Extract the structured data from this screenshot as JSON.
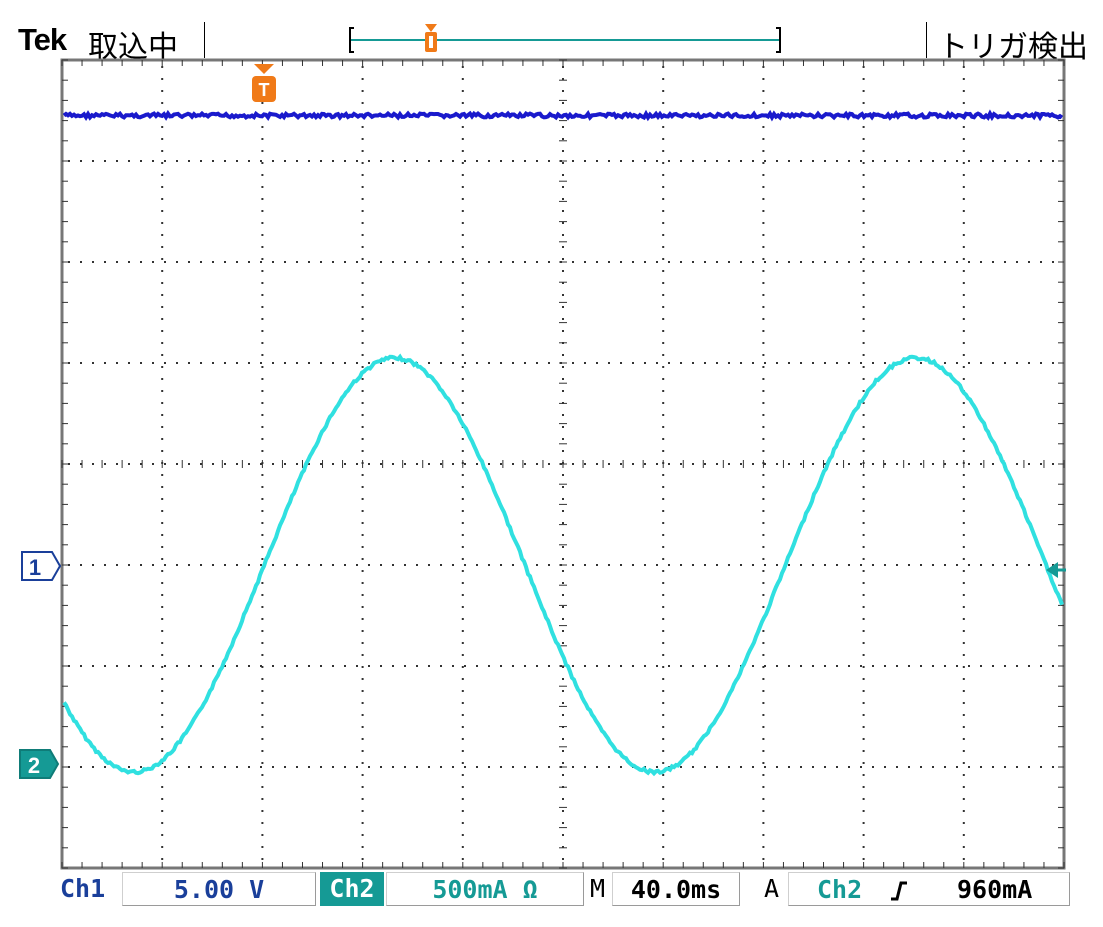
{
  "header": {
    "brand": "Tek",
    "acquisition_status": "取込中",
    "trigger_status": "トリガ検出",
    "trigger_marker_label": "T"
  },
  "channel_markers": {
    "ch1": "1",
    "ch2": "2"
  },
  "bottom_bar": {
    "ch1_label": "Ch1",
    "ch1_scale": "5.00 V",
    "ch2_label": "Ch2",
    "ch2_scale": "500mA Ω",
    "timebase_prefix": "M",
    "timebase": "40.0ms",
    "trigger_mode": "A",
    "trigger_source": "Ch2",
    "trigger_slope_icon": "rising-edge-icon",
    "trigger_level": "960mA"
  },
  "colors": {
    "ch1": "#1a1acc",
    "ch2": "#30e0e0",
    "trigger": "#f07a18",
    "accent": "#159a95"
  },
  "chart_data": {
    "type": "line",
    "grid": {
      "x_divisions": 10,
      "y_divisions": 8,
      "dotted": true
    },
    "series": [
      {
        "channel": "Ch1",
        "shape": "flat",
        "level_div": 3.45
      },
      {
        "channel": "Ch2",
        "shape": "sine",
        "center_div": -1.0,
        "amplitude_div": 2.05,
        "period_div": 5.2
      }
    ]
  }
}
